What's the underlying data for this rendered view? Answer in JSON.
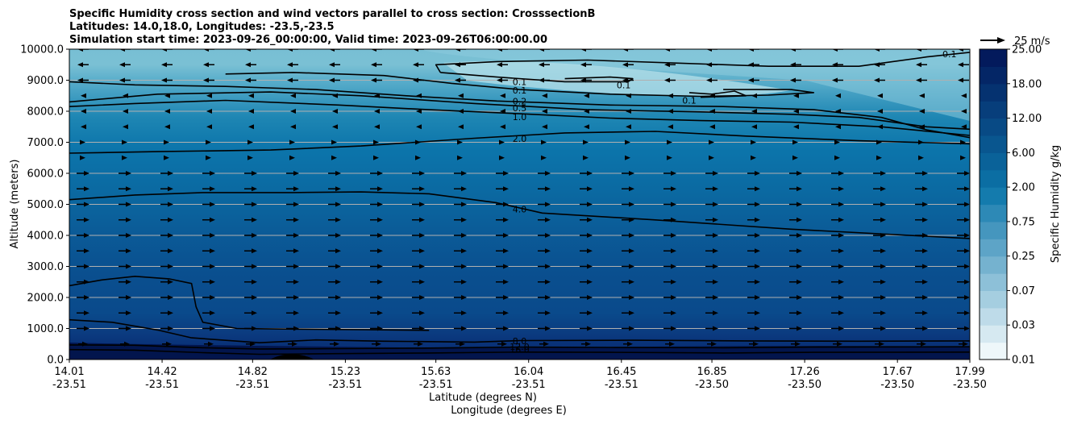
{
  "chart_data": {
    "type": "heatmap",
    "title_lines": [
      "Specific Humidity cross section and wind vectors parallel to cross section: CrosssectionB",
      "Latitudes: 14.0,18.0, Longitudes: -23.5,-23.5",
      "Simulation start time: 2023-09-26_00:00:00, Valid time: 2023-09-26T06:00:00.00"
    ],
    "ylabel": "Altitude (meters)",
    "xlabel_lines": [
      "Latitude (degrees N)",
      "Longitude (degrees E)"
    ],
    "ylim": [
      0,
      10000
    ],
    "xlim": [
      14.01,
      17.99
    ],
    "y_ticks": [
      "0.0",
      "1000.0",
      "2000.0",
      "3000.0",
      "4000.0",
      "5000.0",
      "6000.0",
      "7000.0",
      "8000.0",
      "9000.0",
      "10000.0"
    ],
    "x_ticks": [
      {
        "lat": "14.01",
        "lon": "-23.51"
      },
      {
        "lat": "14.42",
        "lon": "-23.51"
      },
      {
        "lat": "14.82",
        "lon": "-23.51"
      },
      {
        "lat": "15.23",
        "lon": "-23.51"
      },
      {
        "lat": "15.63",
        "lon": "-23.51"
      },
      {
        "lat": "16.04",
        "lon": "-23.51"
      },
      {
        "lat": "16.45",
        "lon": "-23.51"
      },
      {
        "lat": "16.85",
        "lon": "-23.50"
      },
      {
        "lat": "17.26",
        "lon": "-23.50"
      },
      {
        "lat": "17.67",
        "lon": "-23.50"
      },
      {
        "lat": "17.99",
        "lon": "-23.50"
      }
    ],
    "grid": "horizontal",
    "colorbar": {
      "label": "Specific Humidity g/kg",
      "tick_labels": [
        "0.01",
        "0.03",
        "0.07",
        "0.25",
        "0.75",
        "2.00",
        "6.00",
        "12.00",
        "18.00",
        "25.00"
      ],
      "light_color": "#eef7fa",
      "dark_color": "#031a5c"
    },
    "wind_key": {
      "label": "25 m/s",
      "speed": 25
    },
    "contour_levels": [
      "0.1",
      "0.2",
      "0.5",
      "1.0",
      "2.0",
      "4.0",
      "8.0",
      "12.0",
      "16.0"
    ],
    "contour_labels": [
      {
        "text": "0.1",
        "x": 17.9,
        "y": 9840
      },
      {
        "text": "0.1",
        "x": 16.0,
        "y": 8950
      },
      {
        "text": "0.1",
        "x": 16.0,
        "y": 8680
      },
      {
        "text": "0.1",
        "x": 16.46,
        "y": 8850
      },
      {
        "text": "0.1",
        "x": 16.75,
        "y": 8350
      },
      {
        "text": "0.2",
        "x": 16.0,
        "y": 8330
      },
      {
        "text": "0.5",
        "x": 16.0,
        "y": 8110
      },
      {
        "text": "1.0",
        "x": 16.0,
        "y": 7820
      },
      {
        "text": "2.0",
        "x": 16.0,
        "y": 7120
      },
      {
        "text": "4.0",
        "x": 16.0,
        "y": 4850
      },
      {
        "text": "8.0",
        "x": 16.0,
        "y": 600
      },
      {
        "text": "12.0",
        "x": 16.0,
        "y": 420
      },
      {
        "text": "16.0",
        "x": 16.0,
        "y": 330
      }
    ],
    "contours": [
      {
        "level": "16.0",
        "points": [
          [
            14.01,
            320
          ],
          [
            14.3,
            300
          ],
          [
            14.6,
            220
          ],
          [
            14.85,
            170
          ],
          [
            15.2,
            190
          ],
          [
            15.6,
            210
          ],
          [
            16.0,
            240
          ],
          [
            16.4,
            230
          ],
          [
            16.9,
            210
          ],
          [
            17.3,
            230
          ],
          [
            17.99,
            240
          ]
        ]
      },
      {
        "level": "12.0",
        "points": [
          [
            14.01,
            470
          ],
          [
            14.3,
            460
          ],
          [
            14.6,
            380
          ],
          [
            14.85,
            340
          ],
          [
            15.2,
            350
          ],
          [
            15.6,
            370
          ],
          [
            16.0,
            400
          ],
          [
            16.4,
            390
          ],
          [
            16.9,
            380
          ],
          [
            17.3,
            400
          ],
          [
            17.99,
            410
          ]
        ]
      },
      {
        "level": "8.0",
        "points": [
          [
            14.01,
            1280
          ],
          [
            14.2,
            1200
          ],
          [
            14.4,
            950
          ],
          [
            14.55,
            700
          ],
          [
            14.85,
            540
          ],
          [
            15.1,
            630
          ],
          [
            15.4,
            590
          ],
          [
            15.8,
            560
          ],
          [
            16.0,
            610
          ],
          [
            16.5,
            620
          ],
          [
            17.0,
            600
          ],
          [
            17.5,
            590
          ],
          [
            17.99,
            600
          ]
        ]
      },
      {
        "level": "8.0",
        "points": [
          [
            14.01,
            2380
          ],
          [
            14.15,
            2560
          ],
          [
            14.3,
            2680
          ],
          [
            14.45,
            2600
          ],
          [
            14.55,
            2450
          ],
          [
            14.57,
            1700
          ],
          [
            14.6,
            1200
          ],
          [
            14.75,
            1000
          ],
          [
            15.0,
            980
          ],
          [
            15.3,
            960
          ],
          [
            15.6,
            940
          ]
        ]
      },
      {
        "level": "4.0",
        "points": [
          [
            14.01,
            5150
          ],
          [
            14.3,
            5300
          ],
          [
            14.6,
            5380
          ],
          [
            15.0,
            5380
          ],
          [
            15.3,
            5400
          ],
          [
            15.6,
            5340
          ],
          [
            15.9,
            5050
          ],
          [
            16.1,
            4720
          ],
          [
            16.6,
            4500
          ],
          [
            17.2,
            4200
          ],
          [
            17.99,
            3900
          ]
        ]
      },
      {
        "level": "2.0",
        "points": [
          [
            14.01,
            6650
          ],
          [
            14.4,
            6700
          ],
          [
            14.9,
            6750
          ],
          [
            15.3,
            6880
          ],
          [
            15.8,
            7130
          ],
          [
            16.2,
            7300
          ],
          [
            16.6,
            7350
          ],
          [
            17.0,
            7200
          ],
          [
            17.5,
            7050
          ],
          [
            17.99,
            6950
          ]
        ]
      },
      {
        "level": "1.0",
        "points": [
          [
            14.01,
            8150
          ],
          [
            14.3,
            8250
          ],
          [
            14.7,
            8350
          ],
          [
            15.2,
            8200
          ],
          [
            15.6,
            8050
          ],
          [
            16.0,
            7920
          ],
          [
            16.4,
            7780
          ],
          [
            16.8,
            7700
          ],
          [
            17.2,
            7650
          ],
          [
            17.6,
            7500
          ],
          [
            17.99,
            7220
          ]
        ]
      },
      {
        "level": "0.5",
        "points": [
          [
            14.01,
            8300
          ],
          [
            14.4,
            8550
          ],
          [
            14.9,
            8620
          ],
          [
            15.3,
            8500
          ],
          [
            15.8,
            8250
          ],
          [
            16.3,
            8050
          ],
          [
            16.8,
            7980
          ],
          [
            17.2,
            7900
          ],
          [
            17.5,
            7800
          ],
          [
            17.8,
            7500
          ],
          [
            17.99,
            7420
          ]
        ]
      },
      {
        "level": "0.2",
        "points": [
          [
            14.01,
            8950
          ],
          [
            14.3,
            8850
          ],
          [
            14.7,
            8800
          ],
          [
            15.1,
            8700
          ],
          [
            15.5,
            8500
          ],
          [
            15.9,
            8330
          ],
          [
            16.4,
            8200
          ],
          [
            16.9,
            8150
          ],
          [
            17.3,
            8050
          ],
          [
            17.6,
            7800
          ],
          [
            17.8,
            7400
          ],
          [
            17.99,
            7150
          ]
        ]
      },
      {
        "level": "0.1",
        "points": [
          [
            14.7,
            9200
          ],
          [
            15.0,
            9250
          ],
          [
            15.4,
            9150
          ],
          [
            15.7,
            8900
          ],
          [
            16.0,
            8700
          ],
          [
            16.4,
            8550
          ],
          [
            16.8,
            8480
          ],
          [
            17.1,
            8520
          ],
          [
            17.3,
            8600
          ],
          [
            17.2,
            8700
          ],
          [
            16.9,
            8700
          ]
        ]
      },
      {
        "level": "0.1",
        "points": [
          [
            15.65,
            9250
          ],
          [
            15.63,
            9500
          ],
          [
            15.9,
            9600
          ],
          [
            16.3,
            9650
          ],
          [
            16.7,
            9550
          ],
          [
            17.1,
            9450
          ],
          [
            17.5,
            9450
          ],
          [
            17.8,
            9750
          ],
          [
            17.99,
            9900
          ]
        ]
      },
      {
        "level": "0.1",
        "points": [
          [
            15.65,
            9250
          ],
          [
            15.9,
            9100
          ],
          [
            16.2,
            8950
          ],
          [
            16.48,
            8950
          ],
          [
            16.5,
            9050
          ],
          [
            16.4,
            9100
          ],
          [
            16.2,
            9050
          ]
        ]
      },
      {
        "level": "0.1",
        "points": [
          [
            16.75,
            8600
          ],
          [
            16.85,
            8550
          ],
          [
            16.95,
            8650
          ],
          [
            17.0,
            8500
          ],
          [
            16.8,
            8450
          ]
        ]
      }
    ]
  }
}
